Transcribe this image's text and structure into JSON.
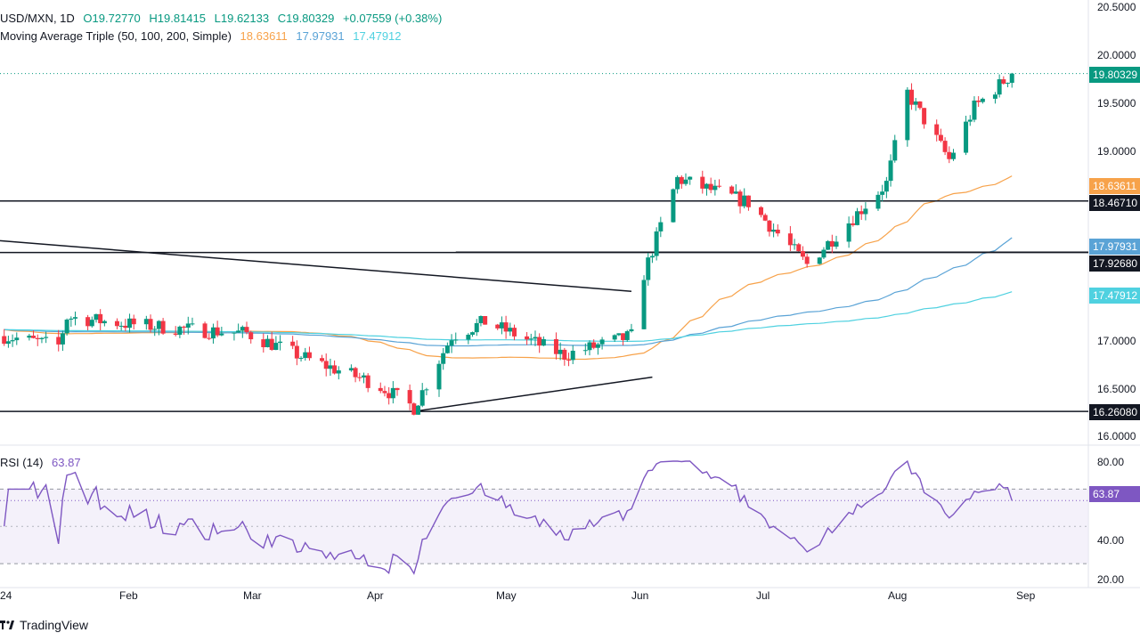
{
  "header": {
    "symbol": "USD/MXN, 1D",
    "open": "O19.72770",
    "high": "H19.81415",
    "low": "L19.62133",
    "close": "C19.80329",
    "change": "+0.07559 (+0.38%)",
    "ma_label": "Moving Average Triple (50, 100, 200, Simple)",
    "ma50": "18.63611",
    "ma100": "17.97931",
    "ma200": "17.47912",
    "rsi_label": "RSI (14)",
    "rsi_value": "63.87"
  },
  "price_tags": {
    "last": "19.80329",
    "ma50": "18.63611",
    "level_high": "18.46710",
    "ma100": "17.97931",
    "level_mid": "17.92680",
    "ma200": "17.47912",
    "level_low": "16.26080",
    "rsi": "63.87"
  },
  "yaxis": {
    "price_ticks": [
      "20.5000",
      "20.0000",
      "19.5000",
      "19.0000",
      "17.0000",
      "16.5000",
      "16.0000"
    ],
    "rsi_ticks": [
      "80.00",
      "40.00",
      "20.00"
    ]
  },
  "xaxis": {
    "labels": [
      "24",
      "Feb",
      "Mar",
      "Apr",
      "May",
      "Jun",
      "Jul",
      "Aug",
      "Sep"
    ]
  },
  "branding": {
    "name": "TradingView"
  },
  "colors": {
    "up": "#089981",
    "down": "#f23645",
    "ma50": "#f7a24a",
    "ma100": "#5aa3d6",
    "ma200": "#4fd1e0",
    "rsi": "#7e57c2",
    "level": "#131722"
  },
  "chart_data": [
    {
      "type": "candlestick",
      "title": "USD/MXN, 1D",
      "x_range": [
        "2024-01-01",
        "2024-09-03"
      ],
      "ylim": [
        16.0,
        20.5
      ],
      "close_path": [
        [
          "2024-01-02",
          17.05
        ],
        [
          "2024-01-15",
          16.95
        ],
        [
          "2024-01-17",
          17.25
        ],
        [
          "2024-01-31",
          17.18
        ],
        [
          "2024-02-15",
          17.12
        ],
        [
          "2024-02-29",
          17.08
        ],
        [
          "2024-03-15",
          16.8
        ],
        [
          "2024-03-31",
          16.55
        ],
        [
          "2024-04-09",
          16.3
        ],
        [
          "2024-04-18",
          17.05
        ],
        [
          "2024-04-26",
          17.2
        ],
        [
          "2024-05-15",
          16.85
        ],
        [
          "2024-05-31",
          17.05
        ],
        [
          "2024-06-03",
          17.7
        ],
        [
          "2024-06-11",
          18.7
        ],
        [
          "2024-06-28",
          18.45
        ],
        [
          "2024-07-12",
          17.8
        ],
        [
          "2024-07-31",
          18.65
        ],
        [
          "2024-08-05",
          19.6
        ],
        [
          "2024-08-15",
          18.9
        ],
        [
          "2024-08-21",
          19.45
        ],
        [
          "2024-08-30",
          19.8
        ]
      ],
      "moving_averages": [
        {
          "name": "MA 50",
          "last": 18.63611
        },
        {
          "name": "MA 100",
          "last": 17.97931
        },
        {
          "name": "MA 200",
          "last": 17.47912
        }
      ],
      "horizontal_levels": [
        18.4671,
        17.9268,
        16.2608
      ],
      "annotations": [
        "descending trendline from January to June",
        "ascending trendline from April low"
      ]
    },
    {
      "type": "line",
      "title": "RSI (14)",
      "ylim": [
        20,
        85
      ],
      "reference_lines": [
        70,
        30
      ],
      "last": 63.87
    }
  ]
}
